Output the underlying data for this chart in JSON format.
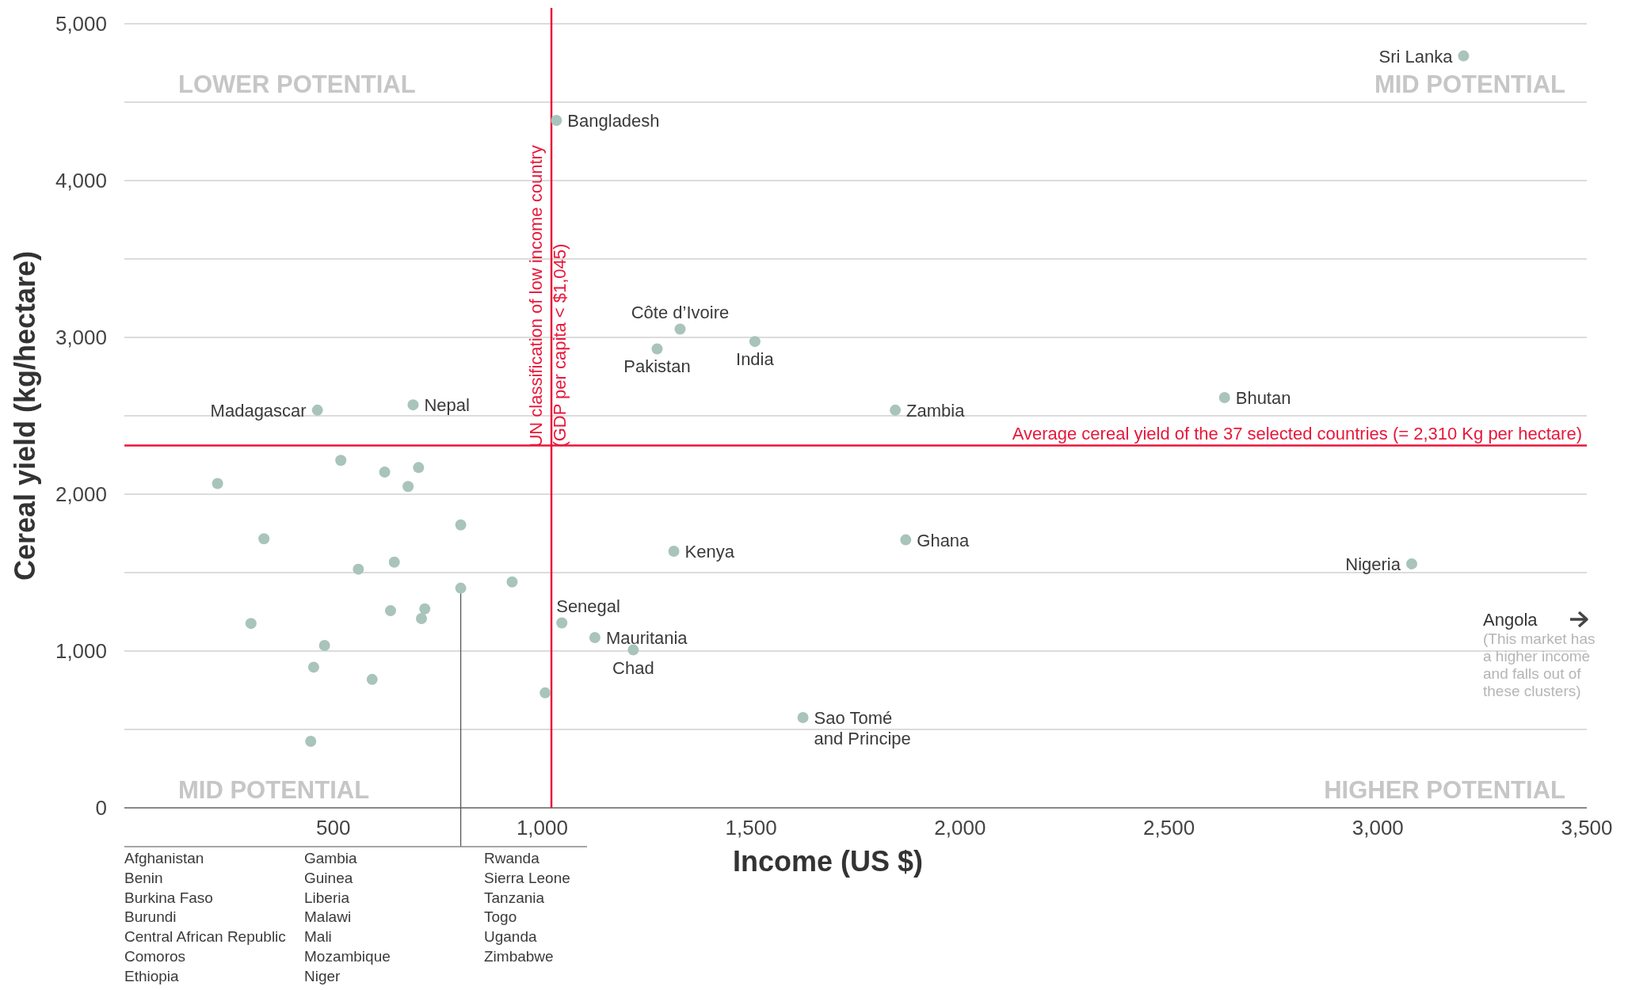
{
  "chart_data": {
    "type": "scatter",
    "xlabel": "Income (US $)",
    "ylabel": "Cereal yield (kg/hectare)",
    "xlim": [
      0,
      3500
    ],
    "ylim": [
      0,
      5000
    ],
    "xticks": [
      500,
      {
        "value": 1000,
        "label": "1,000"
      },
      {
        "value": 1500,
        "label": "1,500"
      },
      {
        "value": 2000,
        "label": "2,000"
      },
      {
        "value": 2500,
        "label": "2,500"
      },
      {
        "value": 3000,
        "label": "3,000"
      },
      {
        "value": 3500,
        "label": "3,500"
      }
    ],
    "yticks": [
      0,
      {
        "value": 500,
        "label": null
      },
      {
        "value": 1000,
        "label": "1,000"
      },
      {
        "value": 1500,
        "label": null
      },
      {
        "value": 2000,
        "label": "2,000"
      },
      {
        "value": 2500,
        "label": null
      },
      {
        "value": 3000,
        "label": "3,000"
      },
      {
        "value": 3500,
        "label": null
      },
      {
        "value": 4000,
        "label": "4,000"
      },
      {
        "value": 4500,
        "label": null
      },
      {
        "value": 5000,
        "label": "5,000"
      }
    ],
    "grid": "y",
    "marker": "circle",
    "series": [
      {
        "color": "#a9c4ba",
        "x": [
          3205,
          1034,
          1330,
          1275,
          1509,
          2633,
          462,
          691,
          1845,
          1315,
          1870,
          3081,
          1047,
          1126,
          1218,
          1624,
          518,
          623,
          704,
          679,
          223,
          805,
          334,
          646,
          560,
          805,
          928,
          637,
          719,
          711,
          303,
          479,
          453,
          593,
          1007,
          446
        ],
        "values": [
          4795,
          4384,
          3053,
          2927,
          2974,
          2616,
          2536,
          2570,
          2536,
          1636,
          1709,
          1556,
          1179,
          1086,
          1007,
          576,
          2216,
          2141,
          2170,
          2049,
          2068,
          1804,
          1716,
          1567,
          1522,
          1401,
          1441,
          1257,
          1269,
          1207,
          1176,
          1035,
          897,
          819,
          733,
          424
        ]
      }
    ],
    "ref_lines": [
      {
        "axis": "x",
        "value": 1022,
        "label": "UN classification of low income country\n(GDP per capita < $1,045)",
        "color": "#e8173a"
      },
      {
        "axis": "y",
        "value": 2310,
        "label": "Average cereal yield of the 37 selected countries (= 2,310 Kg per hectare)",
        "color": "#e8173a"
      }
    ],
    "annotations": [
      {
        "text": "Sri Lanka",
        "x": 3205,
        "y": 4795
      },
      {
        "text": "Bangladesh",
        "x": 1034,
        "y": 4384
      },
      {
        "text": "Côte d’Ivoire",
        "x": 1330,
        "y": 3053
      },
      {
        "text": "Pakistan",
        "x": 1275,
        "y": 2927
      },
      {
        "text": "India",
        "x": 1509,
        "y": 2974
      },
      {
        "text": "Bhutan",
        "x": 2633,
        "y": 2616
      },
      {
        "text": "Madagascar",
        "x": 462,
        "y": 2536
      },
      {
        "text": "Nepal",
        "x": 691,
        "y": 2570
      },
      {
        "text": "Zambia",
        "x": 1845,
        "y": 2536
      },
      {
        "text": "Kenya",
        "x": 1315,
        "y": 1636
      },
      {
        "text": "Ghana",
        "x": 1870,
        "y": 1709
      },
      {
        "text": "Nigeria",
        "x": 3081,
        "y": 1556
      },
      {
        "text": "Senegal",
        "x": 1047,
        "y": 1179
      },
      {
        "text": "Mauritania",
        "x": 1126,
        "y": 1086
      },
      {
        "text": "Chad",
        "x": 1218,
        "y": 1007
      },
      {
        "text": "Sao Tomé\nand Principe",
        "x": 1624,
        "y": 576
      },
      "LOWER POTENTIAL",
      "MID POTENTIAL",
      "MID POTENTIAL",
      "HIGHER POTENTIAL",
      "Angola",
      "(This market has a higher income and falls out of these clusters)",
      "Afghanistan",
      "Benin",
      "Burkina Faso",
      "Burundi",
      "Central African Republic",
      "Comoros",
      "Ethiopia",
      "Gambia",
      "Guinea",
      "Liberia",
      "Malawi",
      "Mali",
      "Mozambique",
      "Niger",
      "Rwanda",
      "Sierra Leone",
      "Tanzania",
      "Togo",
      "Uganda",
      "Zimbabwe"
    ]
  }
}
